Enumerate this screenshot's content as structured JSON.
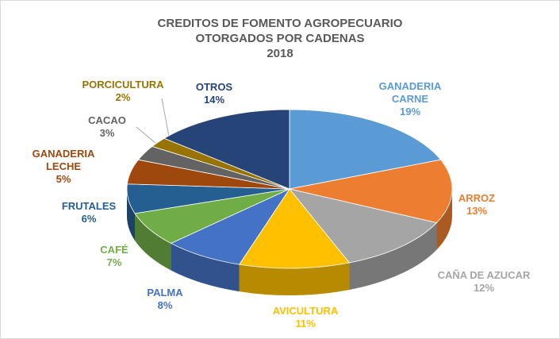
{
  "chart_data": {
    "type": "pie",
    "title": [
      "CREDITOS DE FOMENTO AGROPECUARIO",
      "OTORGADOS POR CADENAS"
    ],
    "subtitle": "2018",
    "categories": [
      "GANADERIA CARNE",
      "ARROZ",
      "CAÑA DE AZUCAR",
      "AVICULTURA",
      "PALMA",
      "CAFÉ",
      "FRUTALES",
      "GANADERIA LECHE",
      "CACAO",
      "PORCICULTURA",
      "OTROS"
    ],
    "values": [
      19,
      13,
      12,
      11,
      8,
      7,
      6,
      5,
      3,
      2,
      14
    ],
    "value_labels": [
      "19%",
      "13%",
      "12%",
      "11%",
      "8%",
      "7%",
      "6%",
      "5%",
      "3%",
      "2%",
      "14%"
    ],
    "colors": [
      "#5b9bd5",
      "#ed7d31",
      "#a5a5a5",
      "#ffc000",
      "#4472c4",
      "#70ad47",
      "#255e91",
      "#9e480e",
      "#636363",
      "#997300",
      "#264478"
    ]
  }
}
